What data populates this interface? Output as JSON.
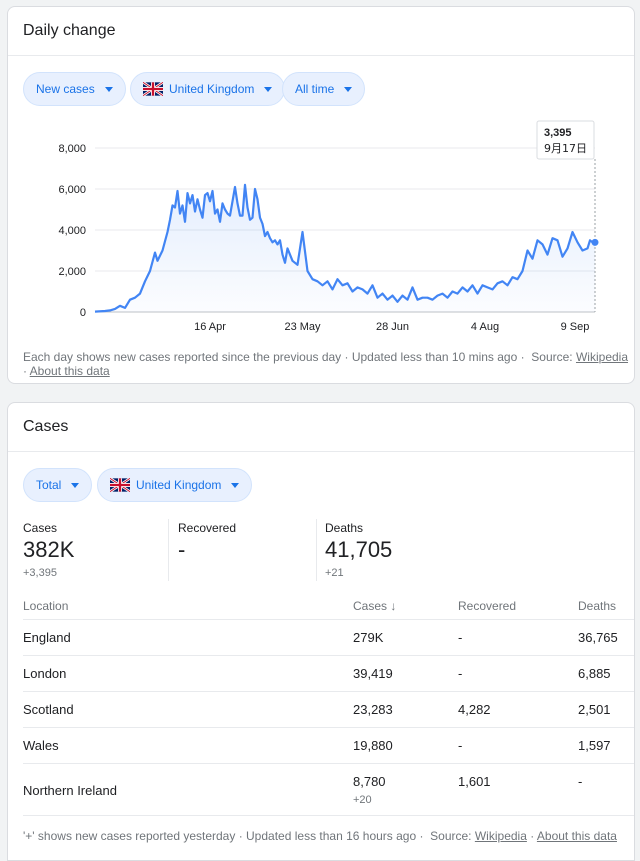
{
  "daily": {
    "title": "Daily change",
    "chips": {
      "metric": "New cases",
      "country": "United Kingdom",
      "range": "All time"
    },
    "tooltip": {
      "value": "3,395",
      "date": "9月17日"
    },
    "footnote": "Each day shows new cases reported since the previous day · Updated less than 10 mins ago ·",
    "source_label": "Source:",
    "source_link": "Wikipedia",
    "about_link": "About this data"
  },
  "chart_data": {
    "type": "area",
    "y_ticks": [
      "8,000",
      "6,000",
      "4,000",
      "2,000",
      "0"
    ],
    "ylim": [
      0,
      8000
    ],
    "x_ticks": [
      "16 Apr",
      "23 May",
      "28 Jun",
      "4 Aug",
      "9 Sep"
    ],
    "x_tick_days": [
      107,
      144,
      180,
      217,
      253
    ],
    "xlim": [
      61,
      261
    ],
    "grid": true,
    "line_color": "#4285f4",
    "highlight": {
      "day": 261,
      "value": 3395
    },
    "series": [
      {
        "x": [
          61,
          65,
          67,
          69,
          71,
          73,
          75,
          77,
          79,
          81,
          83,
          85,
          86,
          88,
          90,
          91,
          92,
          93,
          94,
          95,
          96,
          97,
          98,
          99,
          100,
          101,
          102,
          103,
          104,
          105,
          106,
          107,
          108,
          109,
          110,
          111,
          112,
          113,
          114,
          115,
          116,
          117,
          118,
          119,
          120,
          121,
          122,
          123,
          124,
          125,
          126,
          127,
          128,
          129,
          130,
          131,
          132,
          133,
          134,
          135,
          136,
          137,
          138,
          140,
          142,
          144,
          146,
          148,
          150,
          152,
          154,
          156,
          158,
          160,
          162,
          164,
          166,
          168,
          170,
          172,
          174,
          176,
          178,
          180,
          182,
          184,
          186,
          188,
          190,
          192,
          194,
          196,
          198,
          200,
          202,
          204,
          206,
          208,
          210,
          212,
          214,
          216,
          218,
          220,
          222,
          224,
          226,
          228,
          230,
          232,
          234,
          236,
          238,
          240,
          242,
          244,
          246,
          248,
          250,
          252,
          254,
          256,
          258,
          259,
          260,
          261
        ],
        "values": [
          20,
          50,
          80,
          150,
          300,
          200,
          600,
          700,
          900,
          1500,
          2000,
          2900,
          2500,
          3000,
          3900,
          4500,
          5200,
          5100,
          5900,
          4800,
          5200,
          4400,
          5800,
          5300,
          5700,
          4900,
          5500,
          5000,
          4600,
          5700,
          5800,
          5400,
          5900,
          4800,
          5000,
          4400,
          5300,
          5000,
          4800,
          4700,
          5400,
          6100,
          5300,
          4700,
          4700,
          6200,
          5100,
          4500,
          4600,
          6000,
          5500,
          4600,
          4300,
          3700,
          3900,
          3600,
          3400,
          3500,
          3300,
          3500,
          2800,
          2400,
          3100,
          2500,
          2300,
          3900,
          2000,
          1600,
          1500,
          1300,
          1500,
          1100,
          1600,
          1300,
          1400,
          1000,
          1200,
          1100,
          900,
          1300,
          700,
          900,
          600,
          800,
          500,
          800,
          600,
          1200,
          600,
          700,
          700,
          600,
          800,
          900,
          700,
          1000,
          900,
          1200,
          1000,
          1300,
          900,
          1300,
          1200,
          1100,
          1400,
          1500,
          1300,
          1700,
          1600,
          2000,
          3000,
          2600,
          3500,
          3300,
          2800,
          3600,
          3500,
          2700,
          3100,
          3900,
          3400,
          3000,
          3100,
          3500,
          3400,
          3395
        ]
      }
    ]
  },
  "cases": {
    "title": "Cases",
    "chips": {
      "type": "Total",
      "country": "United Kingdom"
    },
    "stats": {
      "cases_label": "Cases",
      "cases_value": "382K",
      "cases_delta": "+3,395",
      "recovered_label": "Recovered",
      "recovered_value": "-",
      "deaths_label": "Deaths",
      "deaths_value": "41,705",
      "deaths_delta": "+21"
    },
    "table": {
      "headers": {
        "location": "Location",
        "cases": "Cases",
        "recovered": "Recovered",
        "deaths": "Deaths"
      },
      "rows": [
        {
          "location": "England",
          "cases": "279K",
          "recovered": "-",
          "deaths": "36,765"
        },
        {
          "location": "London",
          "cases": "39,419",
          "recovered": "-",
          "deaths": "6,885"
        },
        {
          "location": "Scotland",
          "cases": "23,283",
          "recovered": "4,282",
          "deaths": "2,501"
        },
        {
          "location": "Wales",
          "cases": "19,880",
          "recovered": "-",
          "deaths": "1,597"
        },
        {
          "location": "Northern Ireland",
          "cases": "8,780",
          "cases_delta": "+20",
          "recovered": "1,601",
          "deaths": "-"
        }
      ]
    },
    "footnote": "'+' shows new cases reported yesterday · Updated less than 16 hours ago ·",
    "source_label": "Source:",
    "source_link": "Wikipedia",
    "about_link": "About this data"
  },
  "colors": {
    "accent": "#1a73e8",
    "chip_bg": "#e8f0fe",
    "divider": "#e8eaed"
  },
  "icons": {
    "dropdown": "chevron-down-icon",
    "flag": "uk-flag-icon",
    "sort": "arrow-down-icon"
  }
}
